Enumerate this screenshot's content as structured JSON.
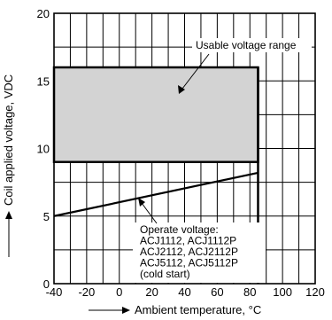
{
  "chart_data": {
    "type": "line",
    "xlabel": "Ambient temperature, °C",
    "ylabel": "Coil applied voltage, VDC",
    "xlim": [
      -40,
      120
    ],
    "ylim": [
      0,
      20
    ],
    "x_ticks": [
      "-40",
      "-20",
      "0",
      "20",
      "40",
      "60",
      "80",
      "100",
      "120"
    ],
    "y_ticks": [
      "0",
      "5",
      "10",
      "15",
      "20"
    ],
    "x_tick_values": [
      -40,
      -20,
      0,
      20,
      40,
      60,
      80,
      100,
      120
    ],
    "y_tick_values": [
      0,
      5,
      10,
      15,
      20
    ],
    "grid": true,
    "usable_range": {
      "label": "Usable voltage range",
      "x_min": -40,
      "x_max": 85,
      "y_min": 9,
      "y_max": 16,
      "fill": "#d3d3d3"
    },
    "operate_voltage": {
      "label_lines": [
        "Operate voltage:",
        "ACJ1112, ACJ1112P",
        "ACJ2112, ACJ2112P",
        "ACJ5112, ACJ5112P",
        "(cold start)"
      ],
      "x": [
        -40,
        85
      ],
      "y": [
        5,
        8.2
      ]
    },
    "limit_line": {
      "x": 85,
      "y_max": 16
    }
  }
}
